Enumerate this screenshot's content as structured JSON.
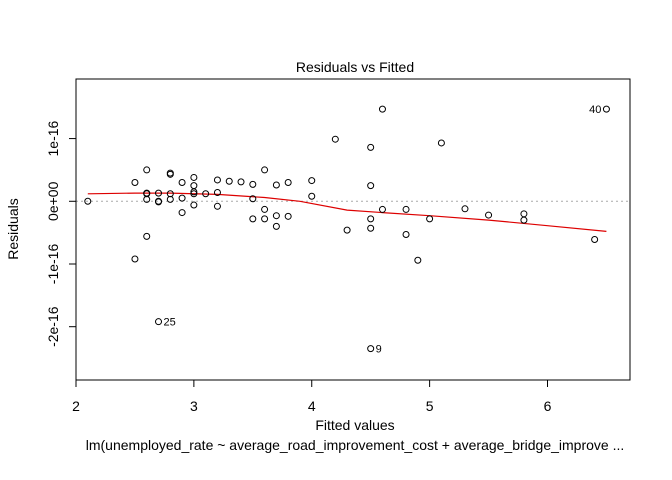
{
  "chart_data": {
    "type": "scatter",
    "title": "Residuals vs Fitted",
    "xlabel": "Fitted values",
    "ylabel": "Residuals",
    "caption": "lm(unemployed_rate ~ average_road_improvement_cost + average_bridge_improve ...",
    "xlim": [
      2.0,
      6.7
    ],
    "ylim": [
      -2.85e-16,
      1.95e-16
    ],
    "x_ticks": [
      {
        "value": 2,
        "label": "2"
      },
      {
        "value": 3,
        "label": "3"
      },
      {
        "value": 4,
        "label": "4"
      },
      {
        "value": 5,
        "label": "5"
      },
      {
        "value": 6,
        "label": "6"
      }
    ],
    "y_ticks": [
      {
        "value": -2e-16,
        "label": "-2e-16"
      },
      {
        "value": -1e-16,
        "label": "-1e-16"
      },
      {
        "value": 0,
        "label": "0e+00"
      },
      {
        "value": 1e-16,
        "label": "1e-16"
      }
    ],
    "reference_line": 0,
    "point_color": "#000000",
    "smooth_color": "#dd0000",
    "reference_color": "#aaaaaa",
    "points": [
      {
        "x": 2.1,
        "y": 0.0
      },
      {
        "x": 2.5,
        "y": 3e-17
      },
      {
        "x": 2.5,
        "y": -9.2e-17
      },
      {
        "x": 2.6,
        "y": 5e-17
      },
      {
        "x": 2.6,
        "y": 1.3e-17
      },
      {
        "x": 2.6,
        "y": 1.2e-17
      },
      {
        "x": 2.6,
        "y": 3e-18
      },
      {
        "x": 2.6,
        "y": -5.6e-17
      },
      {
        "x": 2.7,
        "y": 1.3e-17
      },
      {
        "x": 2.7,
        "y": 0.0
      },
      {
        "x": 2.7,
        "y": -1e-18
      },
      {
        "x": 2.7,
        "y": -1.92e-16,
        "label": "25"
      },
      {
        "x": 2.8,
        "y": 4.5e-17
      },
      {
        "x": 2.8,
        "y": 4.3e-17
      },
      {
        "x": 2.8,
        "y": 1.2e-17
      },
      {
        "x": 2.8,
        "y": 3e-18
      },
      {
        "x": 2.9,
        "y": 3e-17
      },
      {
        "x": 2.9,
        "y": 5e-18
      },
      {
        "x": 2.9,
        "y": -1.8e-17
      },
      {
        "x": 3.0,
        "y": 3.8e-17
      },
      {
        "x": 3.0,
        "y": 2.5e-17
      },
      {
        "x": 3.0,
        "y": 1.5e-17
      },
      {
        "x": 3.0,
        "y": 1.2e-17
      },
      {
        "x": 3.0,
        "y": -6e-18
      },
      {
        "x": 3.1,
        "y": 1.2e-17
      },
      {
        "x": 3.2,
        "y": 3.4e-17
      },
      {
        "x": 3.2,
        "y": 1.4e-17
      },
      {
        "x": 3.2,
        "y": -8e-18
      },
      {
        "x": 3.3,
        "y": 3.2e-17
      },
      {
        "x": 3.4,
        "y": 3.1e-17
      },
      {
        "x": 3.5,
        "y": 2.7e-17
      },
      {
        "x": 3.5,
        "y": 4e-18
      },
      {
        "x": 3.5,
        "y": -2.8e-17
      },
      {
        "x": 3.6,
        "y": 5e-17
      },
      {
        "x": 3.6,
        "y": -1.3e-17
      },
      {
        "x": 3.6,
        "y": -2.8e-17
      },
      {
        "x": 3.7,
        "y": 2.6e-17
      },
      {
        "x": 3.7,
        "y": -2.3e-17
      },
      {
        "x": 3.7,
        "y": -4e-17
      },
      {
        "x": 3.8,
        "y": 3e-17
      },
      {
        "x": 3.8,
        "y": -2.4e-17
      },
      {
        "x": 4.0,
        "y": 3.3e-17
      },
      {
        "x": 4.0,
        "y": 8e-18
      },
      {
        "x": 4.2,
        "y": 9.9e-17
      },
      {
        "x": 4.3,
        "y": -4.6e-17
      },
      {
        "x": 4.5,
        "y": 8.6e-17
      },
      {
        "x": 4.5,
        "y": 2.5e-17
      },
      {
        "x": 4.5,
        "y": -2.8e-17
      },
      {
        "x": 4.5,
        "y": -4.3e-17
      },
      {
        "x": 4.5,
        "y": -2.35e-16,
        "label": "9"
      },
      {
        "x": 4.6,
        "y": 1.47e-16
      },
      {
        "x": 4.6,
        "y": -1.3e-17
      },
      {
        "x": 4.8,
        "y": -1.3e-17
      },
      {
        "x": 4.8,
        "y": -5.3e-17
      },
      {
        "x": 4.9,
        "y": -9.4e-17
      },
      {
        "x": 5.0,
        "y": -2.8e-17
      },
      {
        "x": 5.1,
        "y": 9.3e-17
      },
      {
        "x": 5.3,
        "y": -1.2e-17
      },
      {
        "x": 5.5,
        "y": -2.2e-17
      },
      {
        "x": 5.8,
        "y": -2e-17
      },
      {
        "x": 5.8,
        "y": -3e-17
      },
      {
        "x": 6.4,
        "y": -6.1e-17
      },
      {
        "x": 6.5,
        "y": 1.47e-16,
        "label": "40"
      }
    ],
    "smooth_line": [
      {
        "x": 2.1,
        "y": 1.2e-17
      },
      {
        "x": 2.5,
        "y": 1.3e-17
      },
      {
        "x": 2.8,
        "y": 1.3e-17
      },
      {
        "x": 3.2,
        "y": 1.1e-17
      },
      {
        "x": 3.6,
        "y": 6e-18
      },
      {
        "x": 3.9,
        "y": 0.0
      },
      {
        "x": 4.3,
        "y": -1.4e-17
      },
      {
        "x": 4.6,
        "y": -1.8e-17
      },
      {
        "x": 5.0,
        "y": -2.3e-17
      },
      {
        "x": 5.5,
        "y": -3e-17
      },
      {
        "x": 6.0,
        "y": -3.9e-17
      },
      {
        "x": 6.5,
        "y": -4.8e-17
      }
    ]
  }
}
